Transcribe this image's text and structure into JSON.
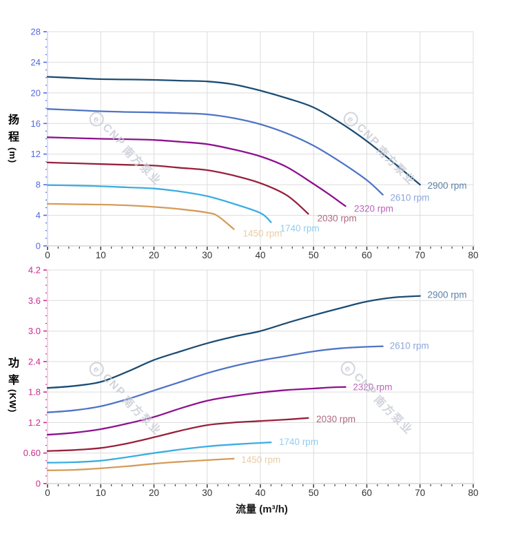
{
  "watermark": {
    "logo_text": "e",
    "brand": "CNP",
    "company": "南方泵业"
  },
  "chart_data": [
    {
      "type": "line",
      "title": "",
      "ylabel": "扬程 (m)",
      "ylabel_cn": "扬程",
      "ylabel_unit": "(m)",
      "xlabel": "",
      "xlim": [
        0,
        80
      ],
      "ylim": [
        0,
        28
      ],
      "x_tick_labels": [
        "0",
        "10",
        "20",
        "30",
        "40",
        "50",
        "60",
        "70",
        "80"
      ],
      "x_tick_values": [
        0,
        10,
        20,
        30,
        40,
        50,
        60,
        70,
        80
      ],
      "x_minor_step": 2,
      "y_tick_labels": [
        "0",
        "4",
        "8",
        "12",
        "16",
        "20",
        "24",
        "28"
      ],
      "y_tick_values": [
        0,
        4,
        8,
        12,
        16,
        20,
        24,
        28
      ],
      "y_minor_step": 1,
      "axis_color": "#5268dd",
      "title_color": "#2f55d8",
      "grid": true,
      "legend_position": "inline-labels",
      "series": [
        {
          "name": "2900 rpm",
          "color": "#1b4b72",
          "label_color": "#5d81a8",
          "label_at": [
            71.4,
            7.9
          ],
          "points": [
            [
              0,
              22.1
            ],
            [
              5,
              21.95
            ],
            [
              10,
              21.8
            ],
            [
              15,
              21.75
            ],
            [
              20,
              21.7
            ],
            [
              25,
              21.6
            ],
            [
              30,
              21.5
            ],
            [
              35,
              21.1
            ],
            [
              40,
              20.3
            ],
            [
              45,
              19.3
            ],
            [
              50,
              18.1
            ],
            [
              55,
              16.1
            ],
            [
              60,
              13.7
            ],
            [
              65,
              10.9
            ],
            [
              70,
              8.0
            ]
          ]
        },
        {
          "name": "2610 rpm",
          "color": "#4e74c6",
          "label_color": "#8ba6dd",
          "label_at": [
            64.4,
            6.3
          ],
          "points": [
            [
              0,
              17.9
            ],
            [
              5,
              17.75
            ],
            [
              10,
              17.6
            ],
            [
              15,
              17.5
            ],
            [
              20,
              17.45
            ],
            [
              25,
              17.35
            ],
            [
              30,
              17.2
            ],
            [
              35,
              16.7
            ],
            [
              40,
              15.9
            ],
            [
              45,
              14.7
            ],
            [
              50,
              13.1
            ],
            [
              55,
              11.0
            ],
            [
              60,
              8.6
            ],
            [
              63,
              6.7
            ]
          ]
        },
        {
          "name": "2320 rpm",
          "color": "#8e108e",
          "label_color": "#bb64bb",
          "label_at": [
            57.6,
            4.85
          ],
          "points": [
            [
              0,
              14.2
            ],
            [
              5,
              14.1
            ],
            [
              10,
              14.0
            ],
            [
              15,
              13.95
            ],
            [
              20,
              13.85
            ],
            [
              25,
              13.6
            ],
            [
              30,
              13.3
            ],
            [
              35,
              12.6
            ],
            [
              40,
              11.7
            ],
            [
              45,
              10.3
            ],
            [
              50,
              8.1
            ],
            [
              53,
              6.7
            ],
            [
              56,
              5.2
            ]
          ]
        },
        {
          "name": "2030 rpm",
          "color": "#97203b",
          "label_color": "#b0687c",
          "label_at": [
            50.7,
            3.6
          ],
          "points": [
            [
              0,
              10.9
            ],
            [
              5,
              10.8
            ],
            [
              10,
              10.7
            ],
            [
              15,
              10.6
            ],
            [
              20,
              10.5
            ],
            [
              25,
              10.2
            ],
            [
              30,
              9.9
            ],
            [
              35,
              9.2
            ],
            [
              40,
              8.2
            ],
            [
              45,
              6.6
            ],
            [
              49,
              4.2
            ]
          ]
        },
        {
          "name": "1740 rpm",
          "color": "#3aade2",
          "label_color": "#92cdf0",
          "label_at": [
            43.7,
            2.3
          ],
          "points": [
            [
              0,
              7.95
            ],
            [
              5,
              7.9
            ],
            [
              10,
              7.8
            ],
            [
              15,
              7.65
            ],
            [
              20,
              7.5
            ],
            [
              25,
              7.1
            ],
            [
              30,
              6.5
            ],
            [
              35,
              5.5
            ],
            [
              40,
              4.3
            ],
            [
              42,
              3.1
            ]
          ]
        },
        {
          "name": "1450 rpm",
          "color": "#d49c58",
          "label_color": "#e9cda5",
          "label_at": [
            36.7,
            1.6
          ],
          "points": [
            [
              0,
              5.5
            ],
            [
              5,
              5.45
            ],
            [
              10,
              5.4
            ],
            [
              15,
              5.3
            ],
            [
              20,
              5.1
            ],
            [
              25,
              4.8
            ],
            [
              30,
              4.35
            ],
            [
              32,
              3.9
            ],
            [
              35,
              2.2
            ]
          ]
        }
      ]
    },
    {
      "type": "line",
      "title": "",
      "ylabel": "功率 (KW)",
      "ylabel_cn": "功率",
      "ylabel_unit": "(KW)",
      "xlabel": "流量 (m³/h)",
      "xlim": [
        0,
        80
      ],
      "ylim": [
        0,
        4.2
      ],
      "x_tick_labels": [
        "0",
        "10",
        "20",
        "30",
        "40",
        "50",
        "60",
        "70",
        "80"
      ],
      "x_tick_values": [
        0,
        10,
        20,
        30,
        40,
        50,
        60,
        70,
        80
      ],
      "x_minor_step": 2,
      "y_tick_labels": [
        "0",
        "0.60",
        "1.2",
        "1.8",
        "2.4",
        "3.0",
        "3.6",
        "4.2"
      ],
      "y_tick_values": [
        0,
        0.6,
        1.2,
        1.8,
        2.4,
        3.0,
        3.6,
        4.2
      ],
      "y_minor_step": 0.15,
      "axis_color": "#cb2a8c",
      "title_color": "#b8108a",
      "grid": true,
      "legend_position": "inline-labels",
      "series": [
        {
          "name": "2900 rpm",
          "color": "#1b4b72",
          "label_color": "#5d81a8",
          "label_at": [
            71.4,
            3.71
          ],
          "points": [
            [
              0,
              1.88
            ],
            [
              5,
              1.92
            ],
            [
              10,
              2.0
            ],
            [
              15,
              2.2
            ],
            [
              20,
              2.43
            ],
            [
              25,
              2.6
            ],
            [
              30,
              2.76
            ],
            [
              35,
              2.89
            ],
            [
              40,
              3.0
            ],
            [
              45,
              3.16
            ],
            [
              50,
              3.31
            ],
            [
              55,
              3.45
            ],
            [
              60,
              3.58
            ],
            [
              65,
              3.66
            ],
            [
              70,
              3.69
            ]
          ]
        },
        {
          "name": "2610 rpm",
          "color": "#4e74c6",
          "label_color": "#8ba6dd",
          "label_at": [
            64.3,
            2.71
          ],
          "points": [
            [
              0,
              1.4
            ],
            [
              5,
              1.44
            ],
            [
              10,
              1.52
            ],
            [
              15,
              1.66
            ],
            [
              20,
              1.83
            ],
            [
              25,
              2.0
            ],
            [
              30,
              2.17
            ],
            [
              35,
              2.31
            ],
            [
              40,
              2.42
            ],
            [
              45,
              2.51
            ],
            [
              50,
              2.6
            ],
            [
              55,
              2.66
            ],
            [
              60,
              2.69
            ],
            [
              63,
              2.7
            ]
          ]
        },
        {
          "name": "2320 rpm",
          "color": "#8e108e",
          "label_color": "#bb64bb",
          "label_at": [
            57.4,
            1.9
          ],
          "points": [
            [
              0,
              0.96
            ],
            [
              5,
              1.0
            ],
            [
              10,
              1.07
            ],
            [
              15,
              1.18
            ],
            [
              20,
              1.31
            ],
            [
              25,
              1.48
            ],
            [
              30,
              1.63
            ],
            [
              35,
              1.72
            ],
            [
              40,
              1.79
            ],
            [
              45,
              1.84
            ],
            [
              50,
              1.87
            ],
            [
              53,
              1.89
            ],
            [
              56,
              1.9
            ]
          ]
        },
        {
          "name": "2030 rpm",
          "color": "#97203b",
          "label_color": "#b0687c",
          "label_at": [
            50.5,
            1.27
          ],
          "points": [
            [
              0,
              0.64
            ],
            [
              5,
              0.66
            ],
            [
              10,
              0.7
            ],
            [
              15,
              0.79
            ],
            [
              20,
              0.91
            ],
            [
              25,
              1.04
            ],
            [
              30,
              1.15
            ],
            [
              35,
              1.2
            ],
            [
              40,
              1.23
            ],
            [
              45,
              1.26
            ],
            [
              49,
              1.29
            ]
          ]
        },
        {
          "name": "1740 rpm",
          "color": "#3aade2",
          "label_color": "#92cdf0",
          "label_at": [
            43.5,
            0.82
          ],
          "points": [
            [
              0,
              0.41
            ],
            [
              5,
              0.42
            ],
            [
              10,
              0.45
            ],
            [
              15,
              0.52
            ],
            [
              20,
              0.6
            ],
            [
              25,
              0.67
            ],
            [
              30,
              0.73
            ],
            [
              35,
              0.77
            ],
            [
              40,
              0.8
            ],
            [
              42,
              0.81
            ]
          ]
        },
        {
          "name": "1450 rpm",
          "color": "#d49c58",
          "label_color": "#e9cda5",
          "label_at": [
            36.4,
            0.47
          ],
          "points": [
            [
              0,
              0.26
            ],
            [
              5,
              0.27
            ],
            [
              10,
              0.3
            ],
            [
              15,
              0.34
            ],
            [
              20,
              0.39
            ],
            [
              25,
              0.43
            ],
            [
              30,
              0.46
            ],
            [
              33,
              0.48
            ],
            [
              35,
              0.49
            ]
          ]
        }
      ]
    }
  ]
}
